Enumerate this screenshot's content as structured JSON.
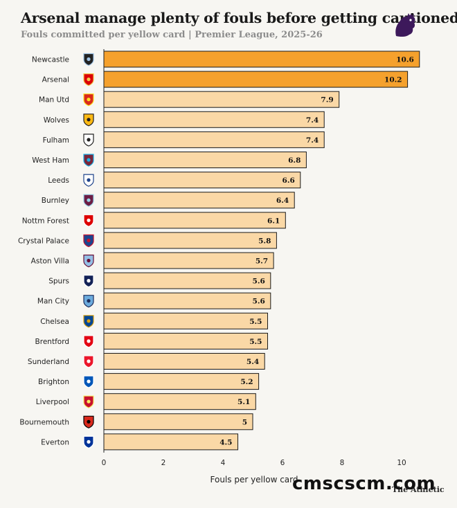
{
  "chart_data": {
    "type": "bar",
    "orientation": "horizontal",
    "title": "Arsenal manage plenty of fouls before getting cautioned",
    "subtitle": "Fouls committed per yellow card | Premier League, 2025-26",
    "xlabel": "Fouls per yellow card",
    "ylabel": "",
    "xlim": [
      0,
      11.5
    ],
    "xticks": [
      0,
      2,
      4,
      6,
      8,
      10
    ],
    "grid": false,
    "categories": [
      "Newcastle",
      "Arsenal",
      "Man Utd",
      "Wolves",
      "Fulham",
      "West Ham",
      "Leeds",
      "Burnley",
      "Nottm Forest",
      "Crystal Palace",
      "Aston Villa",
      "Spurs",
      "Man City",
      "Chelsea",
      "Brentford",
      "Sunderland",
      "Brighton",
      "Liverpool",
      "Bournemouth",
      "Everton"
    ],
    "values": [
      10.6,
      10.2,
      7.9,
      7.4,
      7.4,
      6.8,
      6.6,
      6.4,
      6.1,
      5.8,
      5.7,
      5.6,
      5.6,
      5.5,
      5.5,
      5.4,
      5.2,
      5.1,
      5,
      4.5
    ],
    "value_labels": [
      "10.6",
      "10.2",
      "7.9",
      "7.4",
      "7.4",
      "6.8",
      "6.6",
      "6.4",
      "6.1",
      "5.8",
      "5.7",
      "5.6",
      "5.6",
      "5.5",
      "5.5",
      "5.4",
      "5.2",
      "5.1",
      "5",
      "4.5"
    ],
    "highlight_color": "#f5a12d",
    "bar_color": "#fad8a6",
    "highlighted": [
      "Newcastle",
      "Arsenal"
    ]
  },
  "team_badges": [
    {
      "team": "Newcastle",
      "icon": "newcastle-badge-icon",
      "color": "#222222",
      "accent": "#9ec3e6"
    },
    {
      "team": "Arsenal",
      "icon": "arsenal-badge-icon",
      "color": "#db0007",
      "accent": "#f2c94c"
    },
    {
      "team": "Man Utd",
      "icon": "man-utd-badge-icon",
      "color": "#da291c",
      "accent": "#fbe122"
    },
    {
      "team": "Wolves",
      "icon": "wolves-badge-icon",
      "color": "#fdb913",
      "accent": "#231f20"
    },
    {
      "team": "Fulham",
      "icon": "fulham-badge-icon",
      "color": "#ffffff",
      "accent": "#222222"
    },
    {
      "team": "West Ham",
      "icon": "west-ham-badge-icon",
      "color": "#7a263a",
      "accent": "#1bb1e7"
    },
    {
      "team": "Leeds",
      "icon": "leeds-badge-icon",
      "color": "#ffffff",
      "accent": "#1d428a"
    },
    {
      "team": "Burnley",
      "icon": "burnley-badge-icon",
      "color": "#6c1d45",
      "accent": "#99d6ea"
    },
    {
      "team": "Nottm Forest",
      "icon": "nottm-forest-badge-icon",
      "color": "#dd0000",
      "accent": "#ffffff"
    },
    {
      "team": "Crystal Palace",
      "icon": "crystal-palace-badge-icon",
      "color": "#1b458f",
      "accent": "#c4122e"
    },
    {
      "team": "Aston Villa",
      "icon": "aston-villa-badge-icon",
      "color": "#95bfe5",
      "accent": "#670e36"
    },
    {
      "team": "Spurs",
      "icon": "spurs-badge-icon",
      "color": "#132257",
      "accent": "#ffffff"
    },
    {
      "team": "Man City",
      "icon": "man-city-badge-icon",
      "color": "#6cabdd",
      "accent": "#1c2c5b"
    },
    {
      "team": "Chelsea",
      "icon": "chelsea-badge-icon",
      "color": "#034694",
      "accent": "#dba111"
    },
    {
      "team": "Brentford",
      "icon": "brentford-badge-icon",
      "color": "#e30613",
      "accent": "#ffffff"
    },
    {
      "team": "Sunderland",
      "icon": "sunderland-badge-icon",
      "color": "#eb172b",
      "accent": "#ffffff"
    },
    {
      "team": "Brighton",
      "icon": "brighton-badge-icon",
      "color": "#0057b8",
      "accent": "#ffffff"
    },
    {
      "team": "Liverpool",
      "icon": "liverpool-badge-icon",
      "color": "#c8102e",
      "accent": "#f6eb61"
    },
    {
      "team": "Bournemouth",
      "icon": "bournemouth-badge-icon",
      "color": "#da291c",
      "accent": "#000000"
    },
    {
      "team": "Everton",
      "icon": "everton-badge-icon",
      "color": "#003399",
      "accent": "#ffffff"
    }
  ],
  "league_logo": {
    "icon": "premier-league-lion-icon",
    "color": "#3d195b"
  },
  "brand": "The Athletic",
  "watermark": "cmscscm.com"
}
